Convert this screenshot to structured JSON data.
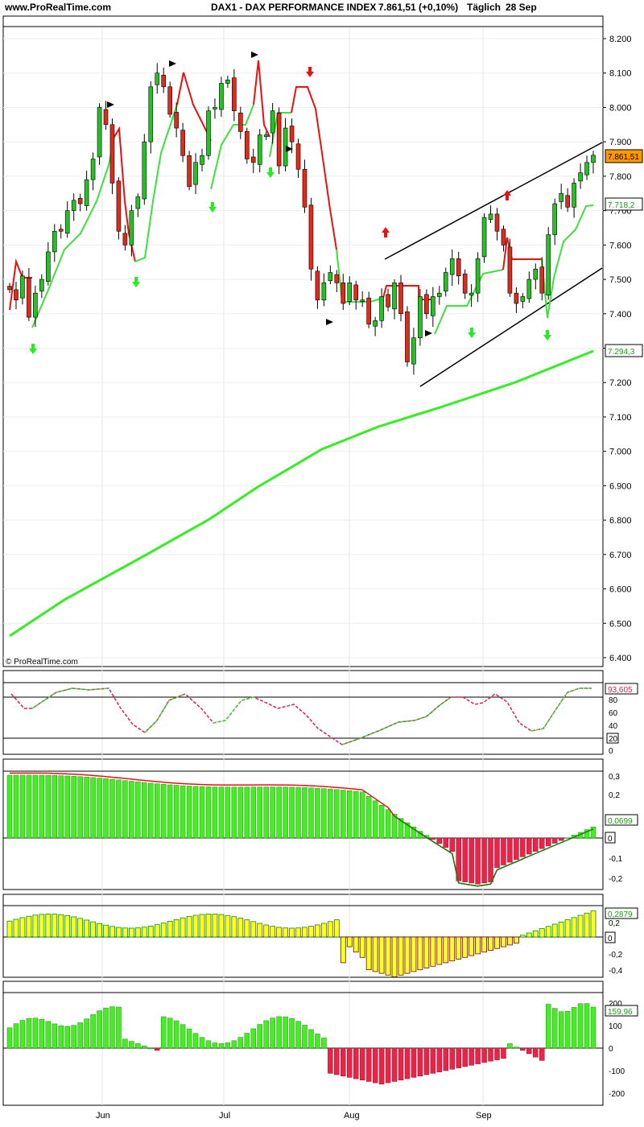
{
  "header": {
    "site": "www.ProRealTime.com",
    "title": "DAX1 - DAX PERFORMANCE INDEX",
    "quote": "7.861,51 (+0,10%)",
    "period": "Täglich",
    "date": "28 Sep"
  },
  "watermark": "© ProRealTime.com",
  "chart_data": [
    {
      "type": "candlestick",
      "panel": "price",
      "ylim": [
        6400,
        8250
      ],
      "yticks": [
        "8.200",
        "8.100",
        "8.000",
        "7.900",
        "7.800",
        "7.700",
        "7.600",
        "7.500",
        "7.400",
        "7.300",
        "7.200",
        "7.100",
        "7.000",
        "6.900",
        "6.800",
        "6.700",
        "6.600",
        "6.500",
        "6.400"
      ],
      "months": [
        "Jun",
        "Jul",
        "Aug",
        "Sep"
      ],
      "last_price_label": "7.861,51",
      "trailing_stop_label": "7.718,2",
      "ma_label": "7.294,3",
      "close": [
        7470,
        7440,
        7510,
        7390,
        7460,
        7500,
        7580,
        7640,
        7640,
        7700,
        7730,
        7720,
        7790,
        7850,
        8000,
        7950,
        7780,
        7640,
        7600,
        7700,
        7740,
        7900,
        8060,
        8100,
        8060,
        7980,
        7940,
        7860,
        7770,
        7840,
        7860,
        7990,
        8000,
        8070,
        8080,
        7990,
        7930,
        7850,
        7840,
        7920,
        7920,
        7990,
        7830,
        7940,
        7900,
        7820,
        7710,
        7530,
        7440,
        7490,
        7520,
        7490,
        7430,
        7490,
        7440,
        7440,
        7370,
        7380,
        7450,
        7420,
        7490,
        7400,
        7260,
        7330,
        7450,
        7400,
        7450,
        7460,
        7520,
        7560,
        7510,
        7460,
        7460,
        7560,
        7680,
        7690,
        7640,
        7600,
        7460,
        7430,
        7450,
        7500,
        7530,
        7460,
        7630,
        7720,
        7750,
        7710,
        7780,
        7810,
        7840,
        7861
      ]
    },
    {
      "type": "line",
      "panel": "oscillator",
      "yticks": [
        "80",
        "60",
        "40",
        "20",
        "0"
      ],
      "last_label": "93,605"
    },
    {
      "type": "histogram",
      "panel": "macd",
      "yticks": [
        "0,3",
        "0,2",
        "0,1",
        "0",
        "-0,1",
        "-0,2"
      ],
      "last_label": "0,0699"
    },
    {
      "type": "histogram",
      "panel": "momentum",
      "yticks": [
        "0,2",
        "0",
        "-0,2",
        "-0,4"
      ],
      "last_label": "0,2879"
    },
    {
      "type": "bar",
      "panel": "cci",
      "yticks": [
        "200",
        "100",
        "0",
        "-100",
        "-200"
      ],
      "last_label": "159,96"
    }
  ]
}
